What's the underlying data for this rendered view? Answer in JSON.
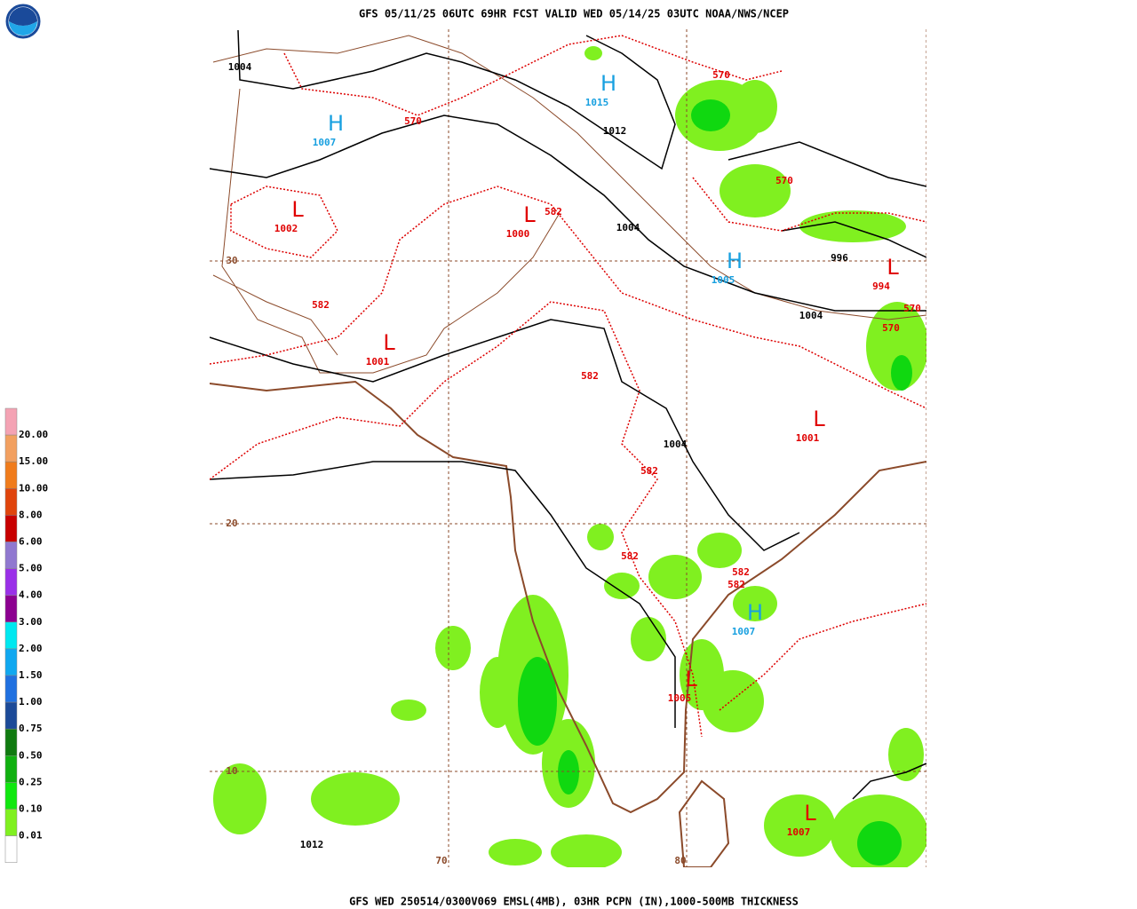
{
  "header": {
    "title": "GFS 05/11/25 06UTC 69HR FCST VALID WED 05/14/25 03UTC NOAA/NWS/NCEP"
  },
  "footer": {
    "caption": "GFS WED 250514/0300V069 EMSL(4MB), 03HR PCPN (IN),1000-500MB THICKNESS"
  },
  "legend": {
    "labels": [
      "20.00",
      "15.00",
      "10.00",
      "8.00",
      "6.00",
      "5.00",
      "4.00",
      "3.00",
      "2.00",
      "1.50",
      "1.00",
      "0.75",
      "0.50",
      "0.25",
      "0.10",
      "0.01"
    ],
    "colors": [
      "#f4a3b4",
      "#f2a060",
      "#f07c1c",
      "#e0440c",
      "#c80000",
      "#9078d0",
      "#9a30e8",
      "#8c0090",
      "#00e8f0",
      "#10a8f0",
      "#2070e0",
      "#1c4a98",
      "#107a10",
      "#10b010",
      "#10e810",
      "#80f020",
      "#ffffff"
    ]
  },
  "map": {
    "lat_labels": [
      30,
      20,
      10
    ],
    "lon_labels": [
      70,
      80
    ],
    "systems": [
      {
        "symbol": "H",
        "value": 1015
      },
      {
        "symbol": "H",
        "value": 1007
      },
      {
        "symbol": "L",
        "value": 1002
      },
      {
        "symbol": "L",
        "value": 1000
      },
      {
        "symbol": "H",
        "value": 1005
      },
      {
        "symbol": "L",
        "value": 994
      },
      {
        "symbol": "L",
        "value": 1001
      },
      {
        "symbol": "L",
        "value": 1001
      },
      {
        "symbol": "H",
        "value": 1007
      },
      {
        "symbol": "L",
        "value": 1005
      },
      {
        "symbol": "L",
        "value": 1007
      }
    ],
    "isobar_labels": [
      1004,
      1012,
      1004,
      996,
      1004,
      1004,
      1012
    ],
    "thickness_labels": [
      570,
      570,
      570,
      582,
      582,
      570,
      570,
      582,
      582,
      582,
      582,
      582
    ]
  }
}
